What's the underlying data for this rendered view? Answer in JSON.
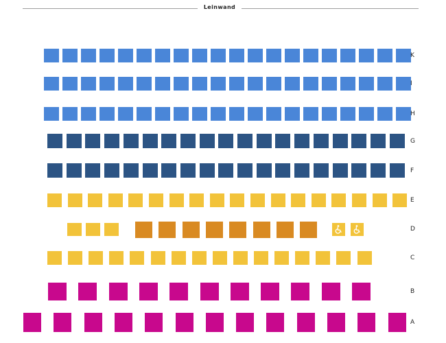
{
  "screen": {
    "label": "Leinwand"
  },
  "categories": {
    "blue": "#4a86d8",
    "navy": "#2c5484",
    "yellow": "#f2c33a",
    "orange": "#d98a22",
    "magenta": "#c8088d",
    "wheelchair": "#f2c33a"
  },
  "seat_icons": {
    "wheelchair": "wheelchair-icon"
  },
  "rows": [
    {
      "label": "K",
      "seats": [
        "blue",
        "blue",
        "blue",
        "blue",
        "blue",
        "blue",
        "blue",
        "blue",
        "blue",
        "blue",
        "blue",
        "blue",
        "blue",
        "blue",
        "blue",
        "blue",
        "blue",
        "blue",
        "blue",
        "blue"
      ]
    },
    {
      "label": "I",
      "seats": [
        "blue",
        "blue",
        "blue",
        "blue",
        "blue",
        "blue",
        "blue",
        "blue",
        "blue",
        "blue",
        "blue",
        "blue",
        "blue",
        "blue",
        "blue",
        "blue",
        "blue",
        "blue",
        "blue",
        "blue"
      ]
    },
    {
      "label": "H",
      "seats": [
        "blue",
        "blue",
        "blue",
        "blue",
        "blue",
        "blue",
        "blue",
        "blue",
        "blue",
        "blue",
        "blue",
        "blue",
        "blue",
        "blue",
        "blue",
        "blue",
        "blue",
        "blue",
        "blue",
        "blue"
      ]
    },
    {
      "label": "G",
      "seats": [
        "navy",
        "navy",
        "navy",
        "navy",
        "navy",
        "navy",
        "navy",
        "navy",
        "navy",
        "navy",
        "navy",
        "navy",
        "navy",
        "navy",
        "navy",
        "navy",
        "navy",
        "navy",
        "navy"
      ]
    },
    {
      "label": "F",
      "seats": [
        "navy",
        "navy",
        "navy",
        "navy",
        "navy",
        "navy",
        "navy",
        "navy",
        "navy",
        "navy",
        "navy",
        "navy",
        "navy",
        "navy",
        "navy",
        "navy",
        "navy",
        "navy",
        "navy"
      ]
    },
    {
      "label": "E",
      "seats": [
        "yellow",
        "yellow",
        "yellow",
        "yellow",
        "yellow",
        "yellow",
        "yellow",
        "yellow",
        "yellow",
        "yellow",
        "yellow",
        "yellow",
        "yellow",
        "yellow",
        "yellow",
        "yellow",
        "yellow",
        "yellow"
      ]
    },
    {
      "label": "D",
      "seats": [
        "yellow",
        "yellow",
        "yellow",
        "orange",
        "orange",
        "orange",
        "orange",
        "orange",
        "orange",
        "orange",
        "orange",
        "wheelchair",
        "wheelchair"
      ]
    },
    {
      "label": "C",
      "seats": [
        "yellow",
        "yellow",
        "yellow",
        "yellow",
        "yellow",
        "yellow",
        "yellow",
        "yellow",
        "yellow",
        "yellow",
        "yellow",
        "yellow",
        "yellow",
        "yellow",
        "yellow",
        "yellow"
      ]
    },
    {
      "label": "B",
      "seats": [
        "magenta",
        "magenta",
        "magenta",
        "magenta",
        "magenta",
        "magenta",
        "magenta",
        "magenta",
        "magenta",
        "magenta",
        "magenta"
      ]
    },
    {
      "label": "A",
      "seats": [
        "magenta",
        "magenta",
        "magenta",
        "magenta",
        "magenta",
        "magenta",
        "magenta",
        "magenta",
        "magenta",
        "magenta",
        "magenta",
        "magenta",
        "magenta"
      ]
    }
  ]
}
